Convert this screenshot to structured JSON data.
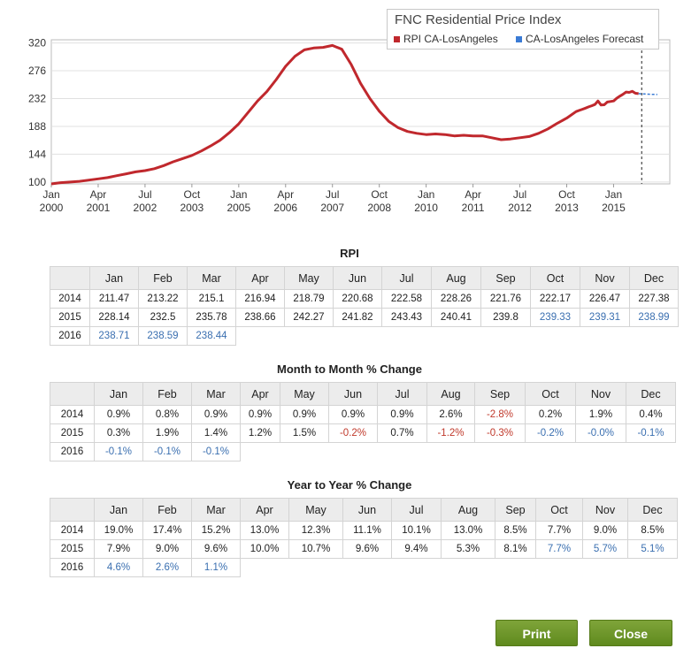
{
  "chart_data": {
    "type": "line",
    "title": "FNC Residential Price Index",
    "yticks": [
      100,
      144,
      188,
      232,
      276,
      320
    ],
    "ylim": [
      97,
      325
    ],
    "xticks": [
      {
        "month": "Jan",
        "year": "2000",
        "t": 2000.0
      },
      {
        "month": "Apr",
        "year": "2001",
        "t": 2001.25
      },
      {
        "month": "Jul",
        "year": "2002",
        "t": 2002.5
      },
      {
        "month": "Oct",
        "year": "2003",
        "t": 2003.75
      },
      {
        "month": "Jan",
        "year": "2005",
        "t": 2005.0
      },
      {
        "month": "Apr",
        "year": "2006",
        "t": 2006.25
      },
      {
        "month": "Jul",
        "year": "2007",
        "t": 2007.5
      },
      {
        "month": "Oct",
        "year": "2008",
        "t": 2008.75
      },
      {
        "month": "Jan",
        "year": "2010",
        "t": 2010.0
      },
      {
        "month": "Apr",
        "year": "2011",
        "t": 2011.25
      },
      {
        "month": "Jul",
        "year": "2012",
        "t": 2012.5
      },
      {
        "month": "Oct",
        "year": "2013",
        "t": 2013.75
      },
      {
        "month": "Jan",
        "year": "2015",
        "t": 2015.0
      }
    ],
    "xlim": [
      2000.0,
      2016.5
    ],
    "forecast_divider": 2015.75,
    "grid": true,
    "legend_position": "top-right",
    "series": [
      {
        "name": "RPI CA-LosAngeles",
        "color": "#c0282d",
        "points": [
          [
            2000.0,
            97
          ],
          [
            2000.25,
            99
          ],
          [
            2000.5,
            100
          ],
          [
            2000.75,
            101
          ],
          [
            2001.0,
            103
          ],
          [
            2001.25,
            105
          ],
          [
            2001.5,
            107
          ],
          [
            2001.75,
            110
          ],
          [
            2002.0,
            113
          ],
          [
            2002.25,
            116
          ],
          [
            2002.5,
            118
          ],
          [
            2002.75,
            121
          ],
          [
            2003.0,
            126
          ],
          [
            2003.25,
            132
          ],
          [
            2003.5,
            137
          ],
          [
            2003.75,
            142
          ],
          [
            2004.0,
            149
          ],
          [
            2004.25,
            157
          ],
          [
            2004.5,
            166
          ],
          [
            2004.75,
            178
          ],
          [
            2005.0,
            192
          ],
          [
            2005.25,
            210
          ],
          [
            2005.5,
            228
          ],
          [
            2005.75,
            243
          ],
          [
            2006.0,
            262
          ],
          [
            2006.25,
            283
          ],
          [
            2006.5,
            299
          ],
          [
            2006.75,
            309
          ],
          [
            2007.0,
            312
          ],
          [
            2007.25,
            313
          ],
          [
            2007.5,
            316
          ],
          [
            2007.75,
            310
          ],
          [
            2008.0,
            286
          ],
          [
            2008.25,
            256
          ],
          [
            2008.5,
            232
          ],
          [
            2008.75,
            212
          ],
          [
            2009.0,
            196
          ],
          [
            2009.25,
            186
          ],
          [
            2009.5,
            180
          ],
          [
            2009.75,
            177
          ],
          [
            2010.0,
            175
          ],
          [
            2010.25,
            176
          ],
          [
            2010.5,
            175
          ],
          [
            2010.75,
            173
          ],
          [
            2011.0,
            174
          ],
          [
            2011.25,
            173
          ],
          [
            2011.5,
            173
          ],
          [
            2011.75,
            170
          ],
          [
            2012.0,
            167
          ],
          [
            2012.25,
            168
          ],
          [
            2012.5,
            170
          ],
          [
            2012.75,
            172
          ],
          [
            2013.0,
            177
          ],
          [
            2013.25,
            184
          ],
          [
            2013.5,
            193
          ],
          [
            2013.75,
            201
          ],
          [
            2014.0,
            211.47
          ],
          [
            2014.083,
            213.22
          ],
          [
            2014.167,
            215.1
          ],
          [
            2014.25,
            216.94
          ],
          [
            2014.333,
            218.79
          ],
          [
            2014.417,
            220.68
          ],
          [
            2014.5,
            222.58
          ],
          [
            2014.583,
            228.26
          ],
          [
            2014.667,
            221.76
          ],
          [
            2014.75,
            222.17
          ],
          [
            2014.833,
            226.47
          ],
          [
            2014.917,
            227.38
          ],
          [
            2015.0,
            228.14
          ],
          [
            2015.083,
            232.5
          ],
          [
            2015.167,
            235.78
          ],
          [
            2015.25,
            238.66
          ],
          [
            2015.333,
            242.27
          ],
          [
            2015.417,
            241.82
          ],
          [
            2015.5,
            243.43
          ],
          [
            2015.583,
            240.41
          ],
          [
            2015.667,
            239.8
          ]
        ]
      },
      {
        "name": "CA-LosAngeles Forecast",
        "color": "#3a7bd5",
        "points": [
          [
            2015.667,
            239.8
          ],
          [
            2015.75,
            239.33
          ],
          [
            2015.833,
            239.31
          ],
          [
            2015.917,
            238.99
          ],
          [
            2016.0,
            238.71
          ],
          [
            2016.083,
            238.59
          ],
          [
            2016.167,
            238.44
          ]
        ]
      }
    ]
  },
  "tables": [
    {
      "title": "RPI",
      "months": [
        "Jan",
        "Feb",
        "Mar",
        "Apr",
        "May",
        "Jun",
        "Jul",
        "Aug",
        "Sep",
        "Oct",
        "Nov",
        "Dec"
      ],
      "rows": [
        {
          "year": "2014",
          "cells": [
            {
              "v": "211.47",
              "s": ""
            },
            {
              "v": "213.22",
              "s": ""
            },
            {
              "v": "215.1",
              "s": ""
            },
            {
              "v": "216.94",
              "s": ""
            },
            {
              "v": "218.79",
              "s": ""
            },
            {
              "v": "220.68",
              "s": ""
            },
            {
              "v": "222.58",
              "s": ""
            },
            {
              "v": "228.26",
              "s": ""
            },
            {
              "v": "221.76",
              "s": ""
            },
            {
              "v": "222.17",
              "s": ""
            },
            {
              "v": "226.47",
              "s": ""
            },
            {
              "v": "227.38",
              "s": ""
            }
          ]
        },
        {
          "year": "2015",
          "cells": [
            {
              "v": "228.14",
              "s": ""
            },
            {
              "v": "232.5",
              "s": ""
            },
            {
              "v": "235.78",
              "s": ""
            },
            {
              "v": "238.66",
              "s": ""
            },
            {
              "v": "242.27",
              "s": ""
            },
            {
              "v": "241.82",
              "s": ""
            },
            {
              "v": "243.43",
              "s": ""
            },
            {
              "v": "240.41",
              "s": ""
            },
            {
              "v": "239.8",
              "s": ""
            },
            {
              "v": "239.33",
              "s": "fc"
            },
            {
              "v": "239.31",
              "s": "fc"
            },
            {
              "v": "238.99",
              "s": "fc"
            }
          ]
        },
        {
          "year": "2016",
          "cells": [
            {
              "v": "238.71",
              "s": "fc"
            },
            {
              "v": "238.59",
              "s": "fc"
            },
            {
              "v": "238.44",
              "s": "fc"
            }
          ]
        }
      ]
    },
    {
      "title": "Month to Month % Change",
      "months": [
        "Jan",
        "Feb",
        "Mar",
        "Apr",
        "May",
        "Jun",
        "Jul",
        "Aug",
        "Sep",
        "Oct",
        "Nov",
        "Dec"
      ],
      "rows": [
        {
          "year": "2014",
          "cells": [
            {
              "v": "0.9%",
              "s": ""
            },
            {
              "v": "0.8%",
              "s": ""
            },
            {
              "v": "0.9%",
              "s": ""
            },
            {
              "v": "0.9%",
              "s": ""
            },
            {
              "v": "0.9%",
              "s": ""
            },
            {
              "v": "0.9%",
              "s": ""
            },
            {
              "v": "0.9%",
              "s": ""
            },
            {
              "v": "2.6%",
              "s": ""
            },
            {
              "v": "-2.8%",
              "s": "neg"
            },
            {
              "v": "0.2%",
              "s": ""
            },
            {
              "v": "1.9%",
              "s": ""
            },
            {
              "v": "0.4%",
              "s": ""
            }
          ]
        },
        {
          "year": "2015",
          "cells": [
            {
              "v": "0.3%",
              "s": ""
            },
            {
              "v": "1.9%",
              "s": ""
            },
            {
              "v": "1.4%",
              "s": ""
            },
            {
              "v": "1.2%",
              "s": ""
            },
            {
              "v": "1.5%",
              "s": ""
            },
            {
              "v": "-0.2%",
              "s": "neg"
            },
            {
              "v": "0.7%",
              "s": ""
            },
            {
              "v": "-1.2%",
              "s": "neg"
            },
            {
              "v": "-0.3%",
              "s": "neg"
            },
            {
              "v": "-0.2%",
              "s": "fc"
            },
            {
              "v": "-0.0%",
              "s": "fc"
            },
            {
              "v": "-0.1%",
              "s": "fc"
            }
          ]
        },
        {
          "year": "2016",
          "cells": [
            {
              "v": "-0.1%",
              "s": "fc"
            },
            {
              "v": "-0.1%",
              "s": "fc"
            },
            {
              "v": "-0.1%",
              "s": "fc"
            }
          ]
        }
      ]
    },
    {
      "title": "Year to Year % Change",
      "months": [
        "Jan",
        "Feb",
        "Mar",
        "Apr",
        "May",
        "Jun",
        "Jul",
        "Aug",
        "Sep",
        "Oct",
        "Nov",
        "Dec"
      ],
      "rows": [
        {
          "year": "2014",
          "cells": [
            {
              "v": "19.0%",
              "s": ""
            },
            {
              "v": "17.4%",
              "s": ""
            },
            {
              "v": "15.2%",
              "s": ""
            },
            {
              "v": "13.0%",
              "s": ""
            },
            {
              "v": "12.3%",
              "s": ""
            },
            {
              "v": "11.1%",
              "s": ""
            },
            {
              "v": "10.1%",
              "s": ""
            },
            {
              "v": "13.0%",
              "s": ""
            },
            {
              "v": "8.5%",
              "s": ""
            },
            {
              "v": "7.7%",
              "s": ""
            },
            {
              "v": "9.0%",
              "s": ""
            },
            {
              "v": "8.5%",
              "s": ""
            }
          ]
        },
        {
          "year": "2015",
          "cells": [
            {
              "v": "7.9%",
              "s": ""
            },
            {
              "v": "9.0%",
              "s": ""
            },
            {
              "v": "9.6%",
              "s": ""
            },
            {
              "v": "10.0%",
              "s": ""
            },
            {
              "v": "10.7%",
              "s": ""
            },
            {
              "v": "9.6%",
              "s": ""
            },
            {
              "v": "9.4%",
              "s": ""
            },
            {
              "v": "5.3%",
              "s": ""
            },
            {
              "v": "8.1%",
              "s": ""
            },
            {
              "v": "7.7%",
              "s": "fc"
            },
            {
              "v": "5.7%",
              "s": "fc"
            },
            {
              "v": "5.1%",
              "s": "fc"
            }
          ]
        },
        {
          "year": "2016",
          "cells": [
            {
              "v": "4.6%",
              "s": "fc"
            },
            {
              "v": "2.6%",
              "s": "fc"
            },
            {
              "v": "1.1%",
              "s": "fc"
            }
          ]
        }
      ]
    }
  ],
  "buttons": {
    "print_label": "Print",
    "close_label": "Close"
  }
}
